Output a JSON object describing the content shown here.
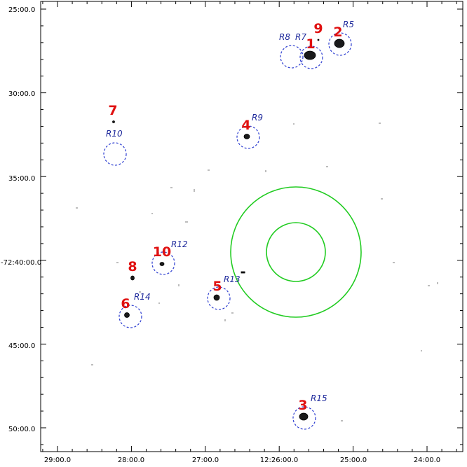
{
  "axes": {
    "dec_labels": [
      "25:00.0",
      "30:00.0",
      "35:00.0",
      "-72:40:00.0",
      "45:00.0",
      "50:00.0"
    ],
    "ra_labels": [
      "29:00.0",
      "28:00.0",
      "27:00.0",
      "12:26:00.0",
      "25:00.0",
      "24:00.0"
    ]
  },
  "colors": {
    "source_label": "#e01010",
    "region_label": "#1f2a9c",
    "region_circle": "#2a3bd0",
    "annulus": "#22cc22",
    "axis": "#000000"
  },
  "sources": [
    {
      "label": "1"
    },
    {
      "label": "2"
    },
    {
      "label": "3"
    },
    {
      "label": "4"
    },
    {
      "label": "5"
    },
    {
      "label": "6"
    },
    {
      "label": "7"
    },
    {
      "label": "8"
    },
    {
      "label": "9"
    },
    {
      "label": "10"
    }
  ],
  "regions": [
    {
      "label": "R5"
    },
    {
      "label": "R7"
    },
    {
      "label": "R8"
    },
    {
      "label": "R9"
    },
    {
      "label": "R10"
    },
    {
      "label": "R12"
    },
    {
      "label": "R13"
    },
    {
      "label": "R14"
    },
    {
      "label": "R15"
    }
  ],
  "annulus": {
    "rings": 2,
    "color": "green"
  }
}
